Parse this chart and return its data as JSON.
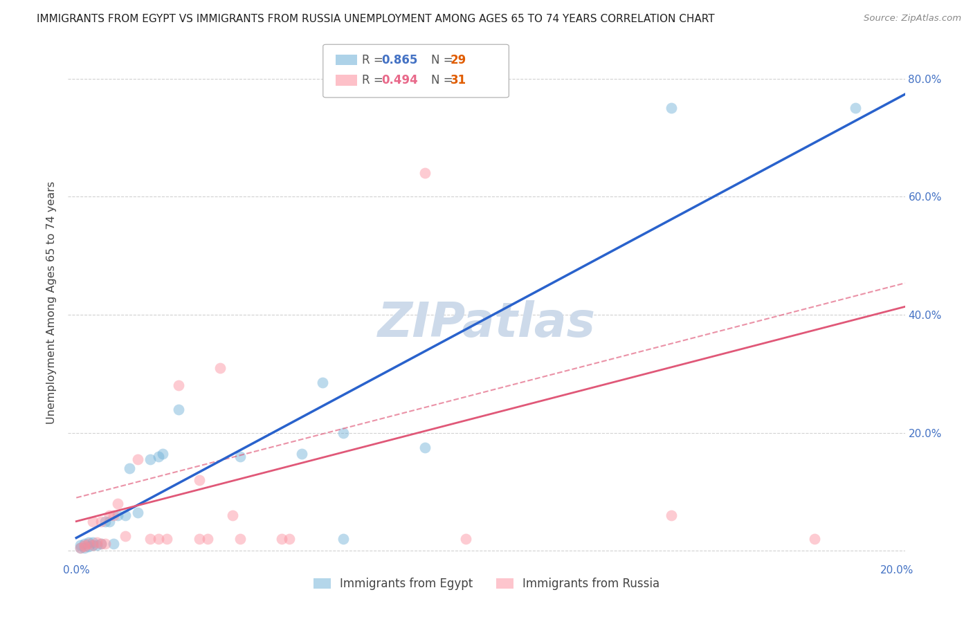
{
  "title": "IMMIGRANTS FROM EGYPT VS IMMIGRANTS FROM RUSSIA UNEMPLOYMENT AMONG AGES 65 TO 74 YEARS CORRELATION CHART",
  "source": "Source: ZipAtlas.com",
  "ylabel": "Unemployment Among Ages 65 to 74 years",
  "xlim": [
    -0.002,
    0.202
  ],
  "ylim": [
    -0.018,
    0.86
  ],
  "egypt_color": "#6baed6",
  "russia_color": "#fc8d9c",
  "egypt_line_color": "#2962cc",
  "russia_line_color": "#e05878",
  "egypt_R": 0.865,
  "egypt_N": 29,
  "russia_R": 0.494,
  "russia_N": 31,
  "legend_label_egypt": "Immigrants from Egypt",
  "legend_label_russia": "Immigrants from Russia",
  "egypt_x": [
    0.001,
    0.001,
    0.002,
    0.002,
    0.003,
    0.003,
    0.004,
    0.004,
    0.005,
    0.006,
    0.007,
    0.008,
    0.009,
    0.01,
    0.012,
    0.013,
    0.015,
    0.018,
    0.02,
    0.021,
    0.025,
    0.04,
    0.055,
    0.06,
    0.065,
    0.065,
    0.085,
    0.145,
    0.19
  ],
  "egypt_y": [
    0.005,
    0.01,
    0.005,
    0.012,
    0.008,
    0.015,
    0.01,
    0.015,
    0.01,
    0.012,
    0.05,
    0.05,
    0.012,
    0.06,
    0.06,
    0.14,
    0.065,
    0.155,
    0.16,
    0.165,
    0.24,
    0.16,
    0.165,
    0.285,
    0.2,
    0.02,
    0.175,
    0.75,
    0.75
  ],
  "russia_x": [
    0.001,
    0.002,
    0.002,
    0.003,
    0.004,
    0.004,
    0.005,
    0.006,
    0.006,
    0.007,
    0.008,
    0.009,
    0.01,
    0.012,
    0.015,
    0.018,
    0.02,
    0.022,
    0.025,
    0.03,
    0.03,
    0.032,
    0.035,
    0.038,
    0.04,
    0.05,
    0.052,
    0.085,
    0.095,
    0.145,
    0.18
  ],
  "russia_y": [
    0.005,
    0.008,
    0.01,
    0.012,
    0.01,
    0.05,
    0.015,
    0.012,
    0.05,
    0.012,
    0.06,
    0.06,
    0.08,
    0.025,
    0.155,
    0.02,
    0.02,
    0.02,
    0.28,
    0.12,
    0.02,
    0.02,
    0.31,
    0.06,
    0.02,
    0.02,
    0.02,
    0.64,
    0.02,
    0.06,
    0.02
  ],
  "background_color": "#ffffff",
  "grid_color": "#cccccc",
  "watermark": "ZIPatlas",
  "watermark_color": "#cddaea",
  "xticks": [
    0.0,
    0.05,
    0.1,
    0.15,
    0.2
  ],
  "yticks": [
    0.0,
    0.2,
    0.4,
    0.6,
    0.8
  ],
  "title_fontsize": 11,
  "tick_fontsize": 11,
  "axis_label_fontsize": 11.5,
  "blue_line_intercept": 0.022,
  "blue_line_slope": 3.72,
  "pink_line_intercept": 0.05,
  "pink_line_slope": 1.8,
  "dash_line_intercept": 0.09,
  "dash_line_slope": 1.8
}
